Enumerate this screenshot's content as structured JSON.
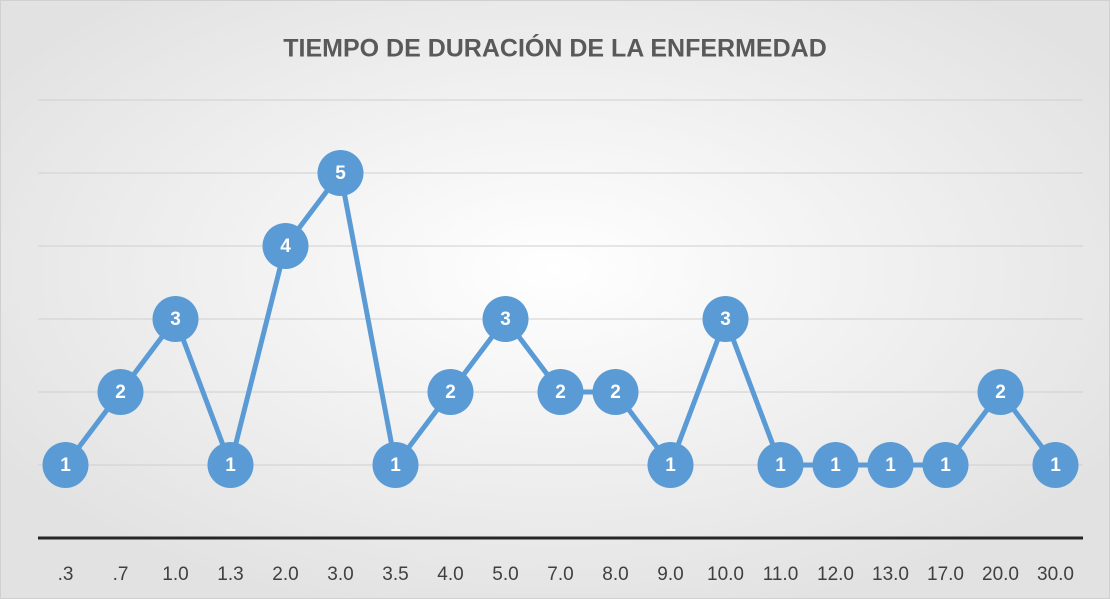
{
  "chart_data": {
    "type": "line",
    "title": "TIEMPO DE DURACIÓN DE LA ENFERMEDAD",
    "categories": [
      ".3",
      ".7",
      "1.0",
      "1.3",
      "2.0",
      "3.0",
      "3.5",
      "4.0",
      "5.0",
      "7.0",
      "8.0",
      "9.0",
      "10.0",
      "11.0",
      "12.0",
      "13.0",
      "17.0",
      "20.0",
      "30.0"
    ],
    "values": [
      1,
      2,
      3,
      1,
      4,
      5,
      1,
      2,
      3,
      2,
      2,
      1,
      3,
      1,
      1,
      1,
      1,
      2,
      1
    ],
    "color": "#5b9bd5",
    "ylim": [
      0,
      6
    ],
    "yticks": [
      0,
      1,
      2,
      3,
      4,
      5,
      6
    ],
    "grid": true
  }
}
